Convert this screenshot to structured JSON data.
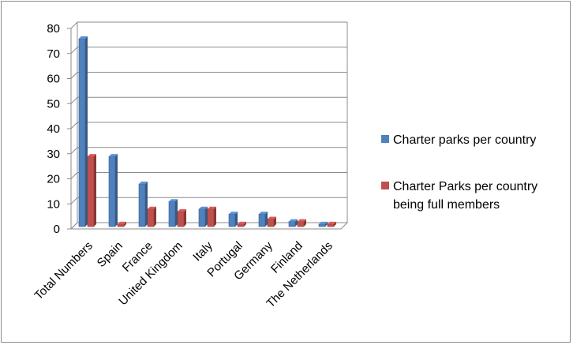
{
  "chart_data": {
    "type": "bar",
    "style": "3d-clustered-column",
    "title": "",
    "xlabel": "",
    "ylabel": "",
    "ylim": [
      0,
      80
    ],
    "yticks": [
      0,
      10,
      20,
      30,
      40,
      50,
      60,
      70,
      80
    ],
    "grid": true,
    "legend_position": "right",
    "categories": [
      "Total Numbers",
      "Spain",
      "France",
      "United Kingdom",
      "Italy",
      "Portugal",
      "Germany",
      "Finland",
      "The Netherlands"
    ],
    "series": [
      {
        "name": "Charter parks per country",
        "color": "#4f81bd",
        "values": [
          75,
          28,
          17,
          10,
          7,
          5,
          5,
          2,
          1
        ]
      },
      {
        "name": "Charter Parks per country being full members",
        "legend_lines": [
          "Charter Parks per country",
          "being full members"
        ],
        "color": "#c0504d",
        "values": [
          28,
          1,
          7,
          6,
          7,
          1,
          3,
          2,
          1
        ]
      }
    ]
  }
}
